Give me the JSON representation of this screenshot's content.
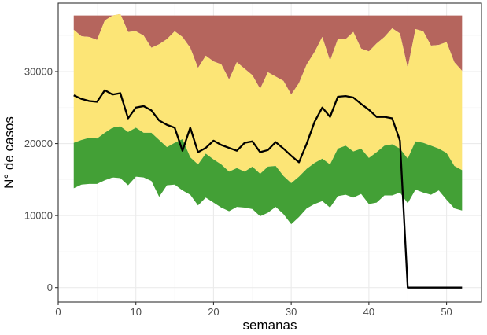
{
  "chart_data": {
    "type": "area",
    "title": "",
    "xlabel": "semanas",
    "ylabel": "N° de casos",
    "xlim": [
      0,
      54.5
    ],
    "ylim": [
      -2000,
      39500
    ],
    "x_ticks": [
      0,
      10,
      20,
      30,
      40,
      50
    ],
    "y_ticks": [
      0,
      10000,
      20000,
      30000
    ],
    "x_tick_labels": [
      "0",
      "10",
      "20",
      "30",
      "40",
      "50"
    ],
    "y_tick_labels": [
      "0",
      "10000",
      "20000",
      "30000"
    ],
    "grid": true,
    "colors": {
      "panel_background": "#ffffff",
      "grid_major": "#ebebeb",
      "grid_minor": "#f5f5f5",
      "panel_border": "#333333",
      "red_band": "#b5655d",
      "yellow_band": "#fce576",
      "green_band": "#43a036",
      "line": "#000000"
    },
    "x": [
      2,
      3,
      4,
      5,
      6,
      7,
      8,
      9,
      10,
      11,
      12,
      13,
      14,
      15,
      16,
      17,
      18,
      19,
      20,
      21,
      22,
      23,
      24,
      25,
      26,
      27,
      28,
      29,
      30,
      31,
      32,
      33,
      34,
      35,
      36,
      37,
      38,
      39,
      40,
      41,
      42,
      43,
      44,
      45,
      46,
      47,
      48,
      49,
      50,
      51,
      52
    ],
    "series": [
      {
        "name": "green_lower",
        "values": [
          13800,
          14300,
          14400,
          14400,
          14900,
          15300,
          15200,
          14200,
          15400,
          15300,
          14800,
          12600,
          14200,
          14300,
          13500,
          12900,
          11400,
          12500,
          11800,
          11100,
          10600,
          11200,
          11100,
          10900,
          9900,
          10400,
          11200,
          10200,
          8800,
          9800,
          11000,
          11600,
          12000,
          11100,
          12700,
          12900,
          12500,
          13000,
          11600,
          11800,
          12800,
          12800,
          13200,
          11700,
          13600,
          13200,
          12900,
          13500,
          12200,
          11000,
          10700
        ]
      },
      {
        "name": "green_upper",
        "values": [
          20100,
          20500,
          20800,
          20700,
          21500,
          22200,
          22400,
          21600,
          22200,
          21500,
          21500,
          20500,
          19500,
          20100,
          20600,
          18100,
          17100,
          18600,
          17800,
          17100,
          16100,
          16600,
          16100,
          16800,
          15800,
          16800,
          16900,
          15500,
          14500,
          15400,
          16500,
          17300,
          17900,
          17100,
          19300,
          19700,
          18900,
          19300,
          18000,
          18800,
          19700,
          19900,
          19300,
          17900,
          20300,
          20100,
          19700,
          19300,
          18700,
          16900,
          16300
        ]
      },
      {
        "name": "yellow_upper",
        "values": [
          35800,
          34900,
          34800,
          34400,
          37100,
          37800,
          38000,
          35500,
          35600,
          35000,
          33300,
          33800,
          34500,
          35600,
          34800,
          33300,
          30500,
          32200,
          31400,
          31000,
          28900,
          31300,
          30400,
          29500,
          27600,
          29900,
          29300,
          28700,
          26800,
          28400,
          31000,
          32700,
          34800,
          31500,
          34500,
          34500,
          35500,
          33200,
          32800,
          33900,
          34800,
          36000,
          35300,
          30500,
          35900,
          35600,
          33600,
          33700,
          34100,
          31300,
          30100
        ]
      },
      {
        "name": "red_upper",
        "values": [
          37800,
          37800,
          37800,
          37800,
          37800,
          37800,
          37800,
          37800,
          37800,
          37800,
          37800,
          37800,
          37800,
          37800,
          37800,
          37800,
          37800,
          37800,
          37800,
          37800,
          37800,
          37800,
          37800,
          37800,
          37800,
          37800,
          37800,
          37800,
          37800,
          37800,
          37800,
          37800,
          37800,
          37800,
          37800,
          37800,
          37800,
          37800,
          37800,
          37800,
          37800,
          37800,
          37800,
          37800,
          37800,
          37800,
          37800,
          37800,
          37800,
          37800,
          37800
        ]
      },
      {
        "name": "casos",
        "values": [
          26700,
          26200,
          25900,
          25800,
          27400,
          26800,
          27000,
          23500,
          25000,
          25200,
          24600,
          23200,
          22600,
          22200,
          19000,
          22200,
          18800,
          19400,
          20400,
          19800,
          19400,
          19000,
          20100,
          20300,
          18800,
          19100,
          20200,
          19300,
          18300,
          17400,
          20000,
          23000,
          25000,
          23700,
          26500,
          26600,
          26400,
          25500,
          24700,
          23700,
          23700,
          23500,
          20400,
          0,
          0,
          0,
          0,
          0,
          0,
          0,
          0
        ]
      }
    ]
  }
}
